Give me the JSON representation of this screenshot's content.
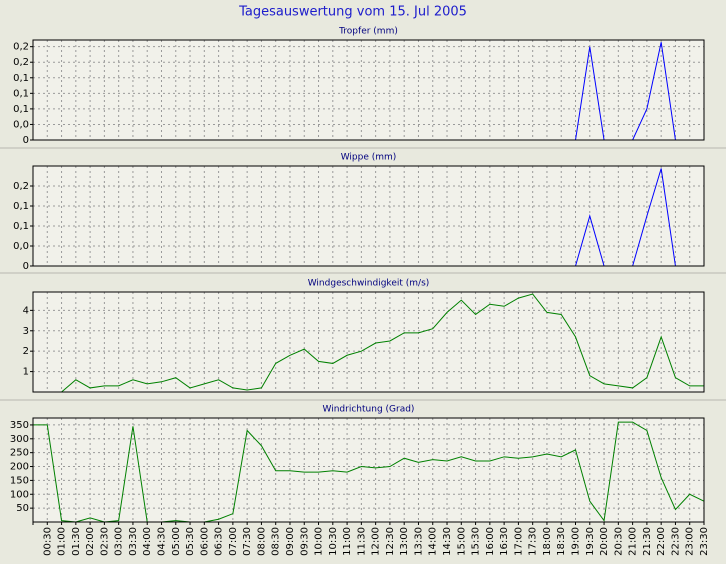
{
  "title": "Tagesauswertung vom 15. Jul 2005",
  "chart_data": [
    {
      "type": "line",
      "title": "Tropfer (mm)",
      "color": "#0000ff",
      "ylim": [
        0,
        0.225
      ],
      "yticks": [
        0,
        {
          "value": 0.035,
          "label": "0,0"
        },
        {
          "value": 0.07,
          "label": "0,1"
        },
        {
          "value": 0.105,
          "label": "0,1"
        },
        {
          "value": 0.14,
          "label": "0,1"
        },
        {
          "value": 0.175,
          "label": "0,2"
        },
        {
          "value": 0.21,
          "label": "0,2"
        }
      ],
      "values": [
        0,
        0,
        0,
        0,
        0,
        0,
        0,
        0,
        0,
        0,
        0,
        0,
        0,
        0,
        0,
        0,
        0,
        0,
        0,
        0,
        0,
        0,
        0,
        0,
        0,
        0,
        0,
        0,
        0,
        0,
        0,
        0,
        0,
        0,
        0,
        0,
        0,
        0,
        0,
        0.21,
        0,
        0,
        0,
        0.07,
        0.22,
        0,
        0,
        0
      ]
    },
    {
      "type": "line",
      "title": "Wippe (mm)",
      "color": "#0000ff",
      "ylim": [
        0,
        0.2
      ],
      "yticks": [
        0,
        {
          "value": 0.04,
          "label": "0,0"
        },
        {
          "value": 0.08,
          "label": "0,1"
        },
        {
          "value": 0.12,
          "label": "0,1"
        },
        {
          "value": 0.16,
          "label": "0,2"
        }
      ],
      "values": [
        0,
        0,
        0,
        0,
        0,
        0,
        0,
        0,
        0,
        0,
        0,
        0,
        0,
        0,
        0,
        0,
        0,
        0,
        0,
        0,
        0,
        0,
        0,
        0,
        0,
        0,
        0,
        0,
        0,
        0,
        0,
        0,
        0,
        0,
        0,
        0,
        0,
        0,
        0,
        0.1,
        0,
        0,
        0,
        0.1,
        0.195,
        0,
        0,
        0
      ]
    },
    {
      "type": "line",
      "title": "Windgeschwindigkeit (m/s)",
      "color": "#008000",
      "ylim": [
        0,
        4.9
      ],
      "yticks": [
        1,
        2,
        3,
        4
      ],
      "values": [
        0,
        0,
        0,
        0.6,
        0.2,
        0.3,
        0.3,
        0.6,
        0.4,
        0.5,
        0.7,
        0.2,
        0.4,
        0.6,
        0.2,
        0.1,
        0.2,
        1.4,
        1.8,
        2.1,
        1.5,
        1.4,
        1.8,
        2.0,
        2.4,
        2.5,
        2.9,
        2.9,
        3.1,
        3.9,
        4.5,
        3.8,
        4.3,
        4.2,
        4.6,
        4.8,
        3.9,
        3.8,
        2.7,
        0.8,
        0.4,
        0.3,
        0.2,
        0.7,
        2.7,
        0.7,
        0.3,
        0.3
      ]
    },
    {
      "type": "line",
      "title": "Windrichtung (Grad)",
      "color": "#008000",
      "ylim": [
        0,
        375
      ],
      "yticks": [
        50,
        100,
        150,
        200,
        250,
        300,
        350
      ],
      "categories": [
        null,
        "00:30",
        "01:00",
        "01:30",
        "02:00",
        "02:30",
        "03:00",
        "03:30",
        "04:00",
        "04:30",
        "05:00",
        "05:30",
        "06:00",
        "06:30",
        "07:00",
        "07:30",
        "08:00",
        "08:30",
        "09:00",
        "09:30",
        "10:00",
        "10:30",
        "11:00",
        "11:30",
        "12:00",
        "12:30",
        "13:00",
        "13:30",
        "14:00",
        "14:30",
        "15:00",
        "15:30",
        "16:00",
        "16:30",
        "17:00",
        "17:30",
        "18:00",
        "18:30",
        "19:00",
        "19:30",
        "20:00",
        "20:30",
        "21:00",
        "21:30",
        "22:00",
        "22:30",
        "23:00",
        "23:30"
      ],
      "values": [
        350,
        350,
        5,
        0,
        15,
        0,
        5,
        345,
        0,
        0,
        5,
        0,
        0,
        10,
        30,
        330,
        275,
        185,
        185,
        180,
        180,
        185,
        180,
        200,
        195,
        200,
        230,
        215,
        225,
        220,
        235,
        220,
        220,
        235,
        230,
        235,
        245,
        235,
        260,
        75,
        5,
        360,
        360,
        330,
        160,
        45,
        100,
        75
      ]
    }
  ]
}
